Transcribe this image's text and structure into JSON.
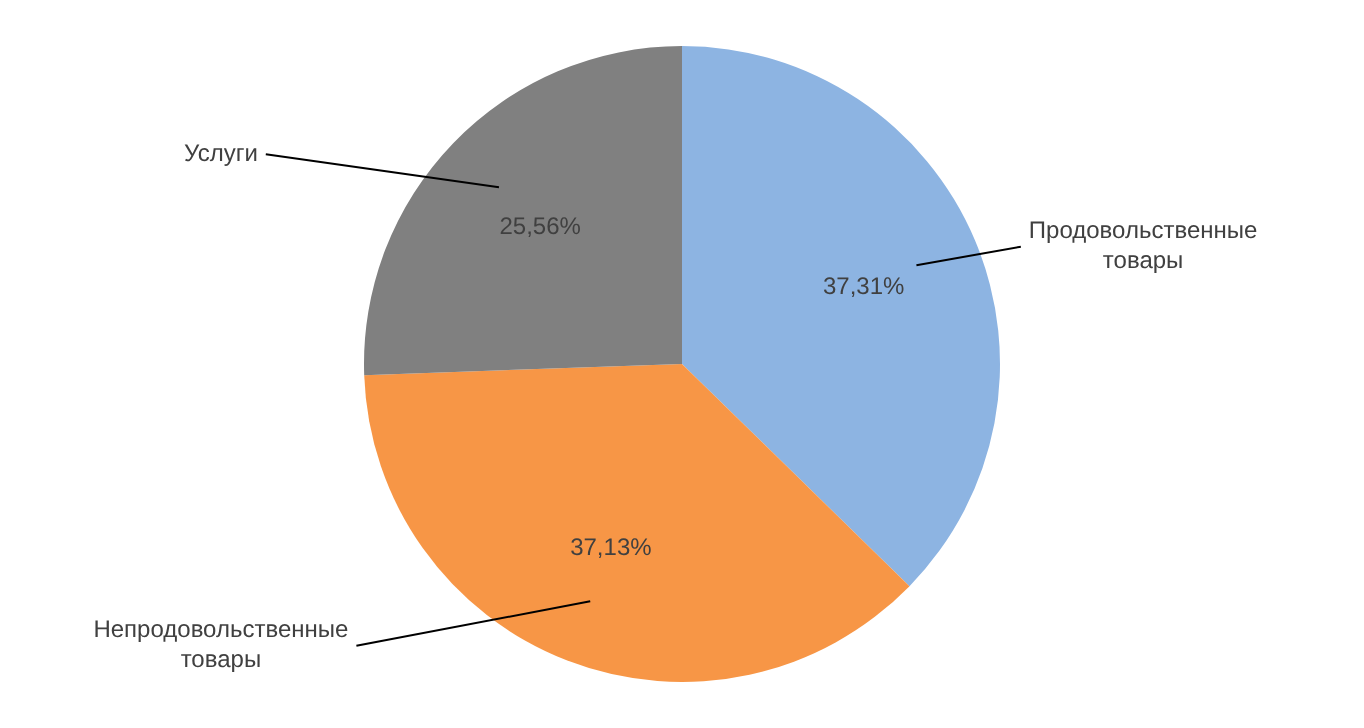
{
  "chart_data": {
    "type": "pie",
    "categories": [
      "Продовольственные товары",
      "Непродовольственные товары",
      "Услуги"
    ],
    "values": [
      37.31,
      37.13,
      25.56
    ],
    "colors": [
      "#8db4e2",
      "#f79646",
      "#808080"
    ],
    "value_labels": [
      "37,31%",
      "37,13%",
      "25,56%"
    ],
    "legend": false
  }
}
